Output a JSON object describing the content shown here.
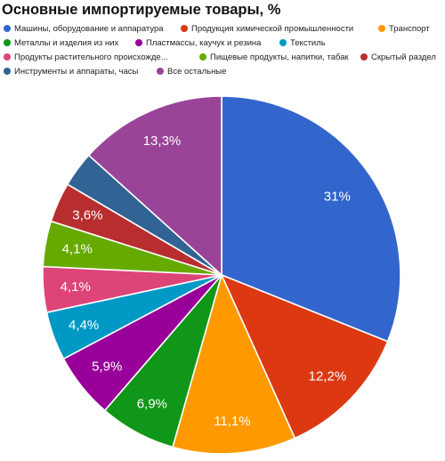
{
  "chart_data": {
    "type": "pie",
    "title": "Основные импортируемые товары, %",
    "legend_position": "top",
    "slices": [
      {
        "name": "Машины, оборудование и аппаратура",
        "value": 31.0,
        "label": "31%",
        "color": "#3366cc"
      },
      {
        "name": "Продукция химической промышленности",
        "value": 12.2,
        "label": "12,2%",
        "color": "#dc3912"
      },
      {
        "name": "Транспорт",
        "value": 11.1,
        "label": "11,1%",
        "color": "#ff9900"
      },
      {
        "name": "Металлы и изделия из них",
        "value": 6.9,
        "label": "6,9%",
        "color": "#109618"
      },
      {
        "name": "Пластмассы, каучук и резина",
        "value": 5.9,
        "label": "5,9%",
        "color": "#990099"
      },
      {
        "name": "Текстиль",
        "value": 4.4,
        "label": "4,4%",
        "color": "#0099c6"
      },
      {
        "name": "Продукты растительного происхожде...",
        "value": 4.1,
        "label": "4,1%",
        "color": "#dd4477"
      },
      {
        "name": "Пищевые продукты, напитки, табак",
        "value": 4.1,
        "label": "4,1%",
        "color": "#66aa00"
      },
      {
        "name": "Скрытый раздел",
        "value": 3.6,
        "label": "3,6%",
        "color": "#b82e2e"
      },
      {
        "name": "Инструменты и аппараты, часы",
        "value": 3.2,
        "label": "",
        "color": "#316395"
      },
      {
        "name": "Все остальные",
        "value": 13.3,
        "label": "13,3%",
        "color": "#994499"
      }
    ]
  }
}
